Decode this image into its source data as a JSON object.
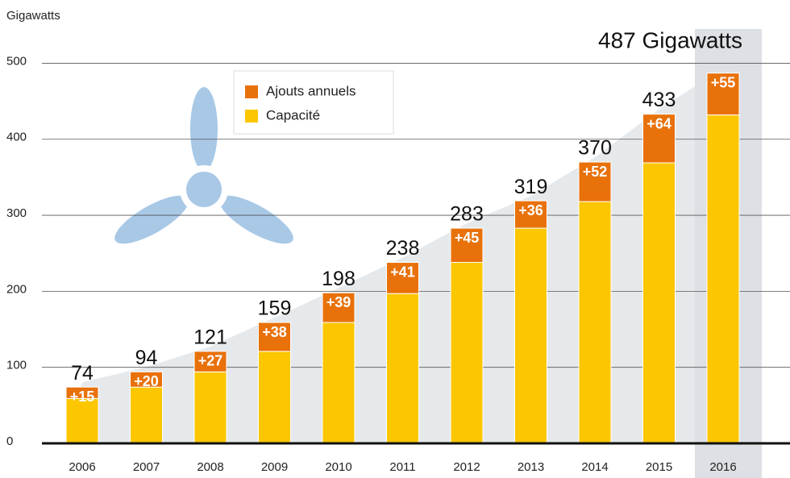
{
  "chart_data": {
    "type": "stacked_bar",
    "y_label": "Gigawatts",
    "categories": [
      "2006",
      "2007",
      "2008",
      "2009",
      "2010",
      "2011",
      "2012",
      "2013",
      "2014",
      "2015",
      "2016"
    ],
    "series": [
      {
        "name": "Capacité",
        "color": "#fcc600",
        "values": [
          59,
          74,
          94,
          121,
          159,
          197,
          238,
          283,
          318,
          369,
          432
        ]
      },
      {
        "name": "Ajouts annuels",
        "color": "#e8710a",
        "values": [
          15,
          20,
          27,
          38,
          39,
          41,
          45,
          36,
          52,
          64,
          55
        ],
        "value_labels": [
          "+15",
          "+20",
          "+27",
          "+38",
          "+39",
          "+41",
          "+45",
          "+36",
          "+52",
          "+64",
          "+55"
        ]
      }
    ],
    "totals": {
      "values": [
        74,
        94,
        121,
        159,
        198,
        238,
        283,
        319,
        370,
        433,
        487
      ],
      "value_labels": [
        "74",
        "94",
        "121",
        "159",
        "198",
        "238",
        "283",
        "319",
        "370",
        "433",
        "487 Gigawatts"
      ]
    },
    "highlight": "2016",
    "ylim": [
      0,
      545
    ],
    "yticks": [
      0,
      100,
      200,
      300,
      400,
      500
    ],
    "grid": true
  }
}
